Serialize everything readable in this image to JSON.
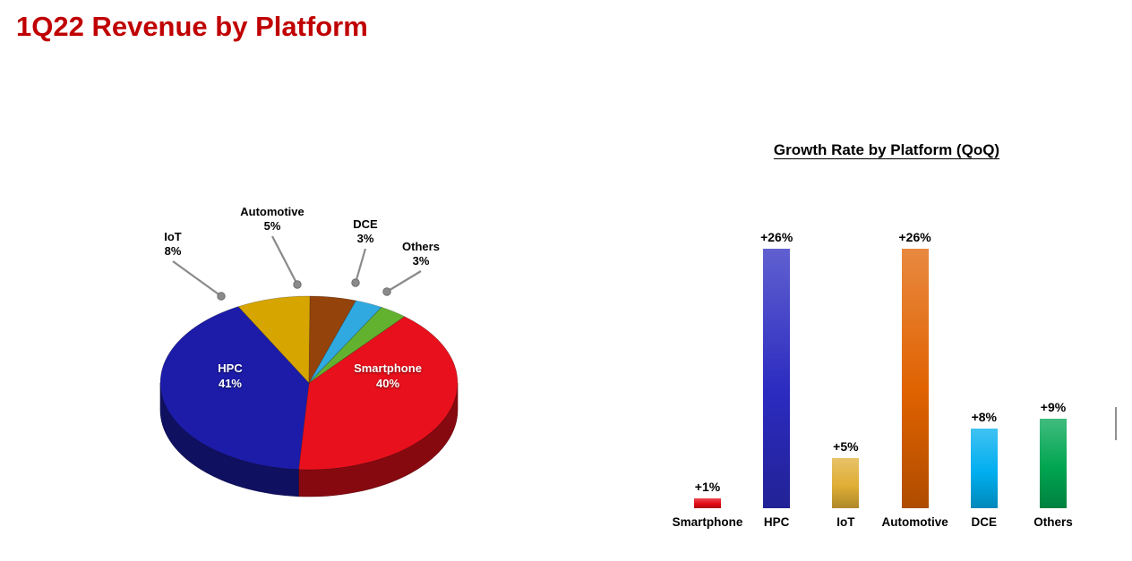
{
  "page": {
    "title": "1Q22 Revenue by Platform",
    "title_color": "#C00000",
    "background": "#FFFFFF"
  },
  "chart_data": [
    {
      "type": "pie",
      "title": "1Q22 Revenue by Platform",
      "unit": "%",
      "style": "3d-pie",
      "start_angle_deg": 310,
      "slices": [
        {
          "label": "Smartphone",
          "value": 40,
          "pct_label": "40%",
          "color": "#E8101C",
          "label_style": "inside"
        },
        {
          "label": "HPC",
          "value": 41,
          "pct_label": "41%",
          "color": "#1C1CA8",
          "label_style": "inside"
        },
        {
          "label": "IoT",
          "value": 8,
          "pct_label": "8%",
          "color": "#D6A500",
          "label_style": "callout"
        },
        {
          "label": "Automotive",
          "value": 5,
          "pct_label": "5%",
          "color": "#94430A",
          "label_style": "callout"
        },
        {
          "label": "DCE",
          "value": 3,
          "pct_label": "3%",
          "color": "#2FA9E0",
          "label_style": "callout"
        },
        {
          "label": "Others",
          "value": 3,
          "pct_label": "3%",
          "color": "#63B22F",
          "label_style": "callout"
        }
      ],
      "callout_color": "#8A8A8A"
    },
    {
      "type": "bar",
      "title": "Growth Rate by Platform (QoQ)",
      "categories": [
        "Smartphone",
        "HPC",
        "IoT",
        "Automotive",
        "DCE",
        "Others"
      ],
      "values": [
        1,
        26,
        5,
        26,
        8,
        9
      ],
      "value_labels": [
        "+1%",
        "+26%",
        "+5%",
        "+26%",
        "+8%",
        "+9%"
      ],
      "colors": [
        "#E30B17",
        "#2B2BC0",
        "#DFAE35",
        "#E06200",
        "#00AEEF",
        "#00A551"
      ],
      "unit": "%",
      "xlabel": "",
      "ylabel": "",
      "ylim": [
        0,
        28
      ],
      "axis": "hidden",
      "grid": false,
      "legend": "none",
      "value_labels_position": "above"
    }
  ]
}
